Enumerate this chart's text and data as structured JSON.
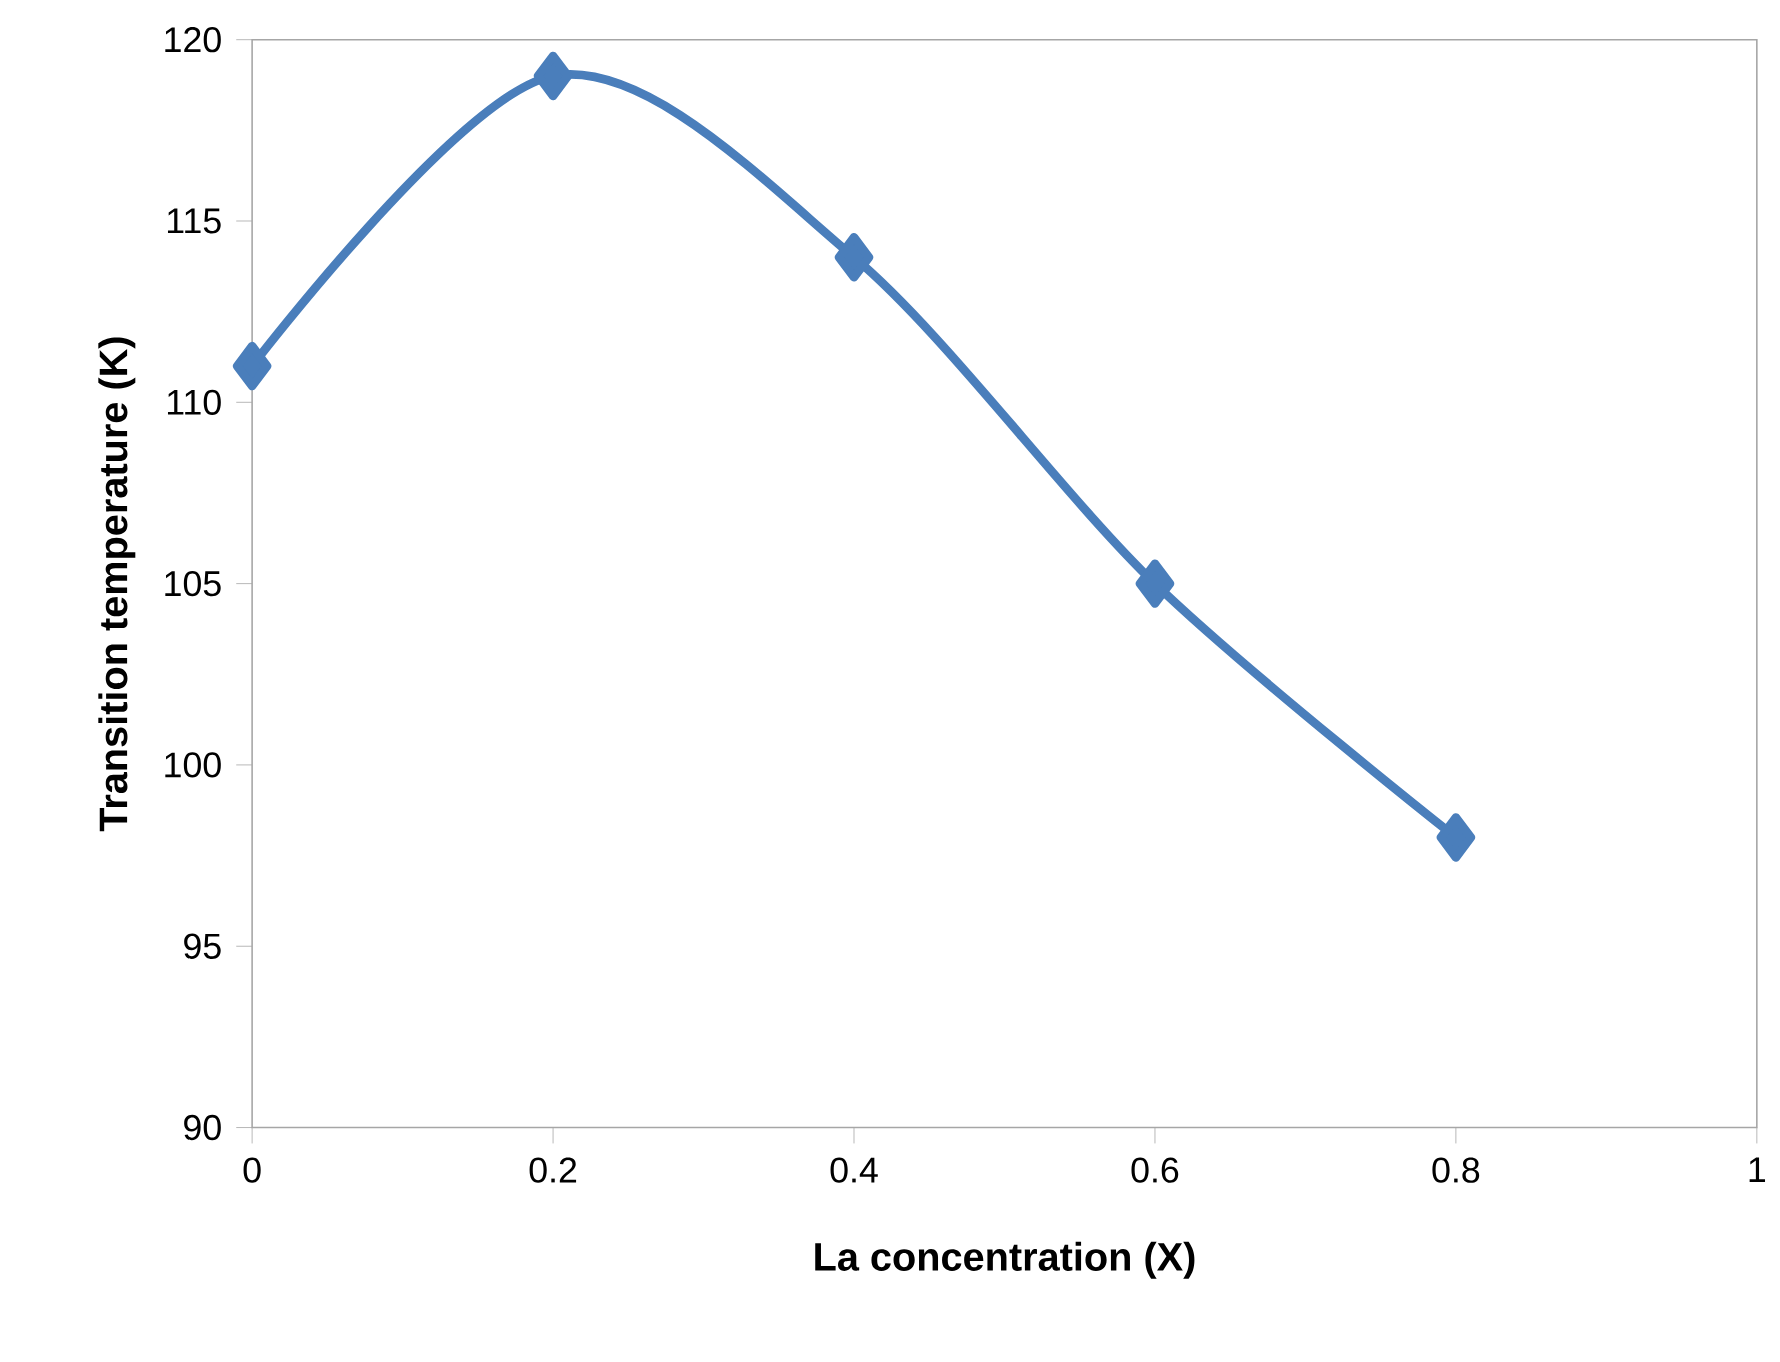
{
  "chart_data": {
    "type": "line",
    "xlabel": "La concentration (X)",
    "ylabel": "Transition temperature (K)",
    "x": [
      0,
      0.2,
      0.4,
      0.6,
      0.8
    ],
    "series": [
      {
        "color": "#4a7ebb",
        "values": [
          111,
          119,
          114,
          105,
          98
        ]
      }
    ],
    "xlim": [
      0,
      1
    ],
    "xticks": [
      0,
      0.2,
      0.4,
      0.6,
      0.8,
      1
    ],
    "ylim": [
      90,
      120
    ],
    "yticks": [
      90,
      95,
      100,
      105,
      110,
      115,
      120
    ],
    "grid": false,
    "marker": "diamond",
    "line_style": "solid"
  }
}
